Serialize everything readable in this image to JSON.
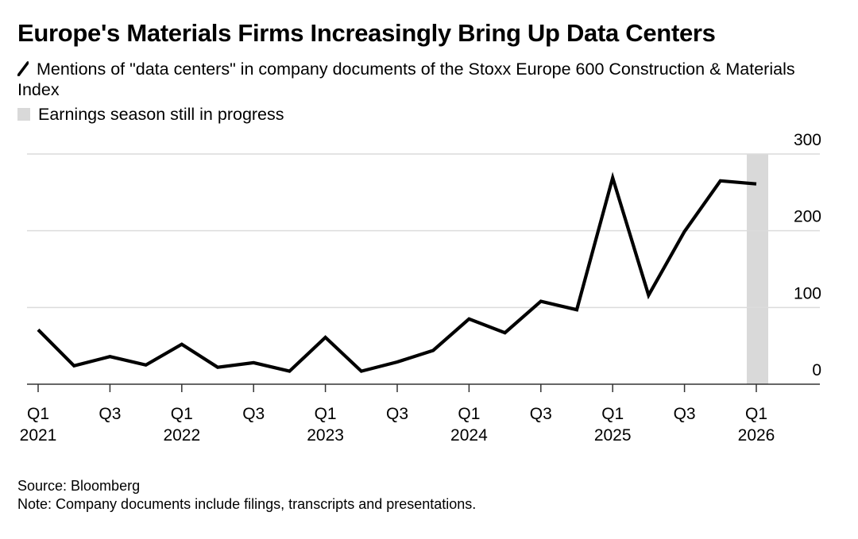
{
  "chart_data": {
    "type": "line",
    "title": "Europe's Materials Firms Increasingly Bring Up Data Centers",
    "xlabel": "",
    "ylabel": "",
    "ylim": [
      0,
      300
    ],
    "grid": true,
    "y_axis_position": "right",
    "y_ticks": [
      0,
      100,
      200,
      300
    ],
    "x": [
      "Q1 2021",
      "Q2 2021",
      "Q3 2021",
      "Q4 2021",
      "Q1 2022",
      "Q2 2022",
      "Q3 2022",
      "Q4 2022",
      "Q1 2023",
      "Q2 2023",
      "Q3 2023",
      "Q4 2023",
      "Q1 2024",
      "Q2 2024",
      "Q3 2024",
      "Q4 2024",
      "Q1 2025",
      "Q2 2025",
      "Q3 2025",
      "Q4 2025",
      "Q1 2026"
    ],
    "x_tick_labels": [
      {
        "index": 0,
        "quarter": "Q1",
        "year": "2021"
      },
      {
        "index": 2,
        "quarter": "Q3",
        "year": ""
      },
      {
        "index": 4,
        "quarter": "Q1",
        "year": "2022"
      },
      {
        "index": 6,
        "quarter": "Q3",
        "year": ""
      },
      {
        "index": 8,
        "quarter": "Q1",
        "year": "2023"
      },
      {
        "index": 10,
        "quarter": "Q3",
        "year": ""
      },
      {
        "index": 12,
        "quarter": "Q1",
        "year": "2024"
      },
      {
        "index": 14,
        "quarter": "Q3",
        "year": ""
      },
      {
        "index": 16,
        "quarter": "Q1",
        "year": "2025"
      },
      {
        "index": 18,
        "quarter": "Q3",
        "year": ""
      },
      {
        "index": 20,
        "quarter": "Q1",
        "year": "2026"
      }
    ],
    "series": [
      {
        "name": "Mentions of \"data centers\" in company documents of the Stoxx Europe 600 Construction & Materials Index",
        "color": "#000000",
        "values": [
          71,
          24,
          36,
          25,
          52,
          22,
          28,
          17,
          61,
          17,
          29,
          44,
          85,
          67,
          108,
          97,
          269,
          116,
          199,
          265,
          261
        ]
      }
    ],
    "shaded_region": {
      "label": "Earnings season still in progress",
      "color": "#d9d9d9",
      "x_index": 20
    },
    "legend": "top-left"
  },
  "legend": {
    "series_label": "Mentions of \"data centers\" in company documents of the Stoxx Europe 600 Construction & Materials Index",
    "shade_label": "Earnings season still in progress"
  },
  "footer": {
    "source": "Source: Bloomberg",
    "note": "Note: Company documents include filings, transcripts and presentations."
  }
}
